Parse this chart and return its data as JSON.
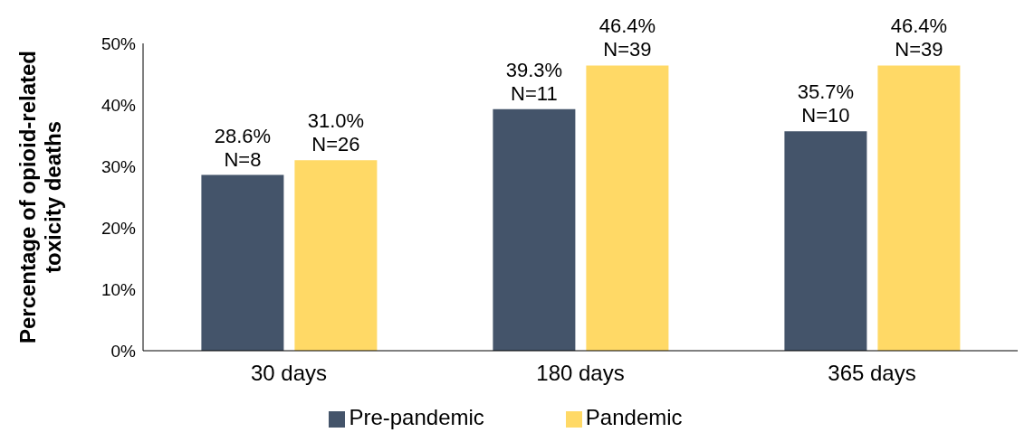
{
  "chart_data": {
    "type": "bar",
    "ylabel": "Percentage of opioid-related toxicity deaths",
    "categories": [
      "30 days",
      "180 days",
      "365 days"
    ],
    "series": [
      {
        "name": "Pre-pandemic",
        "color": "#44546a",
        "values": [
          28.6,
          39.3,
          35.7
        ],
        "value_labels": [
          "28.6%\nN=8",
          "39.3%\nN=11",
          "35.7%\nN=10"
        ]
      },
      {
        "name": "Pandemic",
        "color": "#ffd966",
        "values": [
          31.0,
          46.4,
          46.4
        ],
        "value_labels": [
          "31.0%\nN=26",
          "46.4%\nN=39",
          "46.4%\nN=39"
        ]
      }
    ],
    "ylim": [
      0,
      50
    ],
    "yticks": [
      {
        "value": 0,
        "label": "0%"
      },
      {
        "value": 10,
        "label": "10%"
      },
      {
        "value": 20,
        "label": "20%"
      },
      {
        "value": 30,
        "label": "30%"
      },
      {
        "value": 40,
        "label": "40%"
      },
      {
        "value": 50,
        "label": "50%"
      }
    ],
    "grid": false,
    "legend": "bottom"
  }
}
